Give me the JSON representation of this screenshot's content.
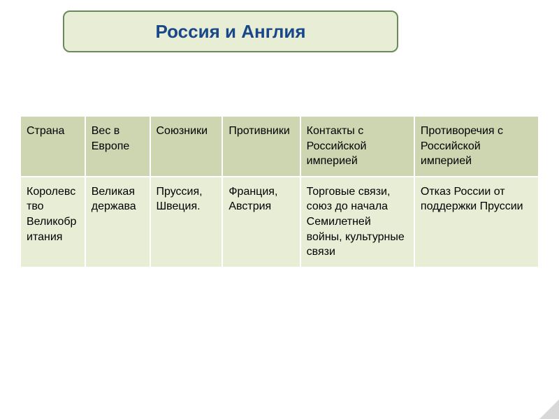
{
  "title": "Россия и Англия",
  "colors": {
    "title_bg": "#e8edd5",
    "title_border": "#6a8a5a",
    "title_text": "#19478a",
    "header_bg": "#cdd6b0",
    "row_bg": "#e8edd5",
    "cell_border": "#ffffff",
    "page_bg": "#ffffff"
  },
  "table": {
    "columns": [
      {
        "label": "Страна",
        "width_pct": 12.5
      },
      {
        "label": "Вес в Европе",
        "width_pct": 12.5
      },
      {
        "label": "Союзники",
        "width_pct": 14
      },
      {
        "label": "Противники",
        "width_pct": 15
      },
      {
        "label": "Контакты с Российской империей",
        "width_pct": 22
      },
      {
        "label": "Противоречия с Российской империей",
        "width_pct": 24
      }
    ],
    "rows": [
      {
        "cells": [
          "Королевство Великобритания",
          "Великая держава",
          "Пруссия, Швеция.",
          "Франция, Австрия",
          "Торговые связи, союз до начала Семилетней войны, культурные связи",
          "Отказ России от поддержки Пруссии"
        ]
      }
    ],
    "font_size_pt": 16,
    "header_font_size_pt": 16
  }
}
